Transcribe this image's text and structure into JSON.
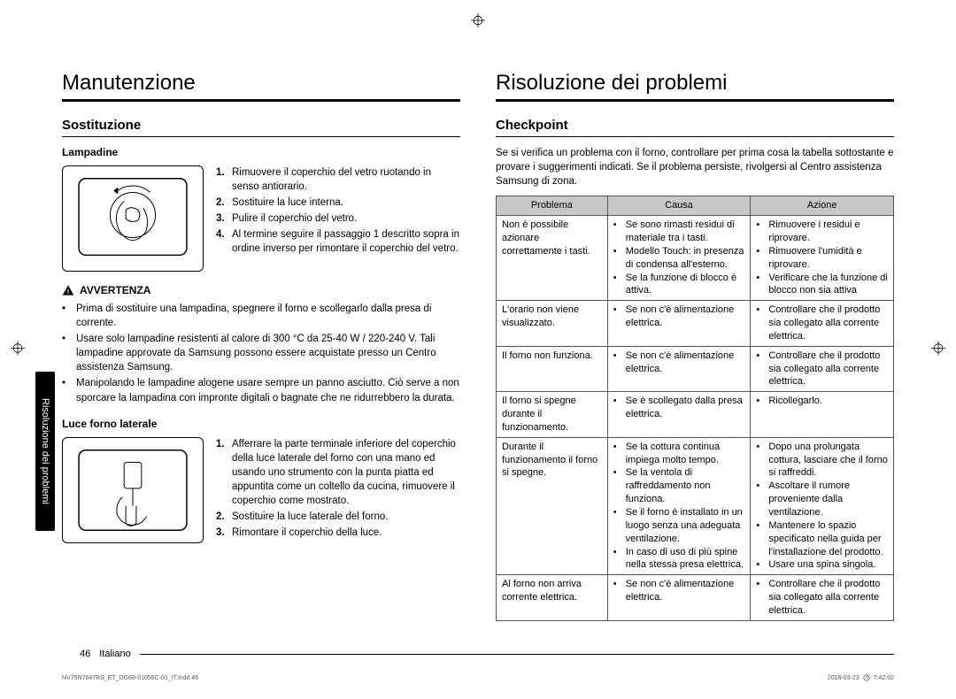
{
  "colors": {
    "text": "#000000",
    "bg": "#ffffff",
    "table_header_bg": "#c8c8c8",
    "border": "#555555",
    "side_tab_bg": "#000000",
    "side_tab_text": "#ffffff",
    "tiny_footer": "#555555"
  },
  "typography": {
    "section_title_size_pt": 18,
    "subhead_size_pt": 11,
    "body_size_pt": 9,
    "table_size_pt": 8
  },
  "left": {
    "title": "Manutenzione",
    "sub": "Sostituzione",
    "lamp": {
      "head": "Lampadine",
      "steps": [
        "Rimuovere il coperchio del vetro ruotando in senso antiorario.",
        "Sostituire la luce interna.",
        "Pulire il coperchio del vetro.",
        "Al termine seguire il passaggio 1 descritto sopra in ordine inverso per rimontare il coperchio del vetro."
      ]
    },
    "warn": {
      "label": "AVVERTENZA",
      "items": [
        "Prima di sostituire una lampadina, spegnere il forno e scollegarlo dalla presa di corrente.",
        "Usare solo lampadine resistenti al calore di 300 °C da 25-40 W / 220-240 V. Tali lampadine approvate da Samsung possono essere acquistate presso un Centro assistenza Samsung.",
        "Manipolando le lampadine alogene usare sempre un panno asciutto. Ciò serve a non sporcare la lampadina con impronte digitali o bagnate che ne ridurrebbero la durata."
      ]
    },
    "side_light": {
      "head": "Luce forno laterale",
      "steps": [
        "Afferrare la parte terminale inferiore del coperchio della luce laterale del forno con una mano ed usando uno strumento con la punta piatta ed appuntita come un coltello da cucina, rimuovere il coperchio come mostrato.",
        "Sostituire la luce laterale del forno.",
        "Rimontare il coperchio della luce."
      ]
    }
  },
  "right": {
    "title": "Risoluzione dei problemi",
    "sub": "Checkpoint",
    "intro": "Se si verifica un problema con il forno, controllare per prima cosa la tabella sottostante e provare i suggerimenti indicati. Se il problema persiste, rivolgersi al Centro assistenza Samsung di zona.",
    "table": {
      "headers": [
        "Problema",
        "Causa",
        "Azione"
      ],
      "col_widths": [
        "28%",
        "36%",
        "36%"
      ],
      "rows": [
        {
          "problem": "Non è possibile azionare correttamente i tasti.",
          "cause": [
            "Se sono rimasti residui di materiale tra i tasti.",
            "Modello Touch: in presenza di condensa all'esterno.",
            "Se la funzione di blocco è attiva."
          ],
          "action": [
            "Rimuovere i residui e riprovare.",
            "Rimuovere l'umidità e riprovare.",
            "Verificare che la funzione di blocco non sia attiva"
          ]
        },
        {
          "problem": "L'orario non viene visualizzato.",
          "cause": [
            "Se non c'è alimentazione elettrica."
          ],
          "action": [
            "Controllare che il prodotto sia collegato alla corrente elettrica."
          ]
        },
        {
          "problem": "Il forno non funziona.",
          "cause": [
            "Se non c'è alimentazione elettrica."
          ],
          "action": [
            "Controllare che il prodotto sia collegato alla corrente elettrica."
          ]
        },
        {
          "problem": "Il forno si spegne durante il funzionamento.",
          "cause": [
            "Se è scollegato dalla presa elettrica."
          ],
          "action": [
            "Ricollegarlo."
          ]
        },
        {
          "problem": "Durante il funzionamento il forno si spegne.",
          "cause": [
            "Se la cottura continua impiega molto tempo.",
            "Se la ventola di raffreddamento non funziona.",
            "Se il forno è installato in un luogo senza una adeguata ventilazione.",
            "In caso di uso di più spine nella stessa presa elettrica."
          ],
          "action": [
            "Dopo una prolungata cottura, lasciare che il forno si raffreddi.",
            "Ascoltare il rumore proveniente dalla ventilazione.",
            "Mantenere lo spazio specificato nella guida per l'installazione del prodotto.",
            "Usare una spina singola."
          ]
        },
        {
          "problem": "Al forno non arriva corrente elettrica.",
          "cause": [
            "Se non c'è alimentazione elettrica."
          ],
          "action": [
            "Controllare che il prodotto sia collegato alla corrente elettrica."
          ]
        }
      ]
    }
  },
  "side_tab": "Risoluzione dei problemi",
  "footer": {
    "page": "46",
    "lang": "Italiano"
  },
  "tiny_left": "NV75N7647RS_ET_DG68-01056C-01_IT.indd   46",
  "tiny_right": {
    "date": "2018-03-23",
    "time": "7:42:02"
  }
}
